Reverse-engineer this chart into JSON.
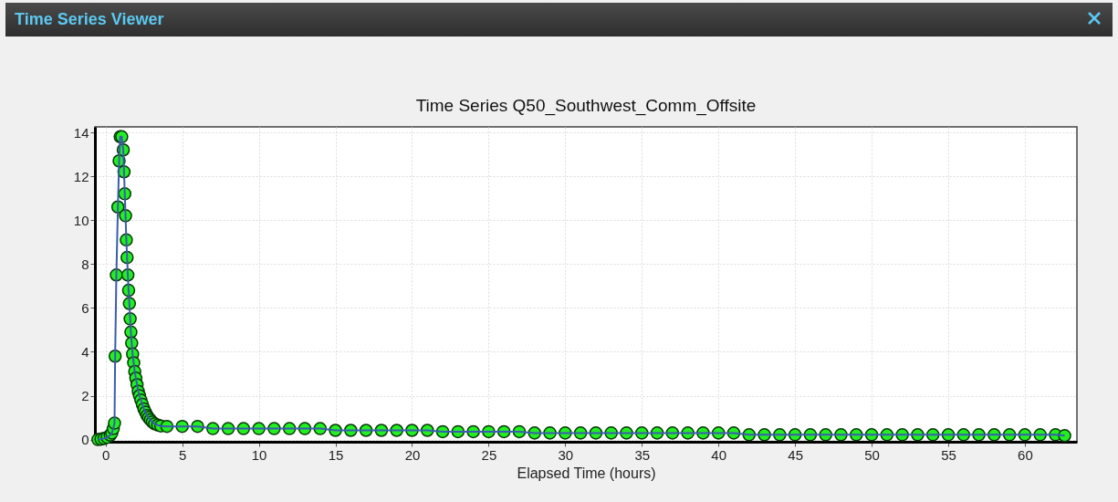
{
  "chart_data": {
    "type": "line",
    "title": "Time Series Q50_Southwest_Comm_Offsite",
    "xlabel": "Elapsed Time (hours)",
    "annotations": [
      "Time Series Viewer"
    ],
    "xlim": [
      -0.7,
      63.4
    ],
    "ylim": [
      -0.1,
      14.25
    ],
    "xticks": [
      0,
      5,
      10,
      15,
      20,
      25,
      30,
      35,
      40,
      45,
      50,
      55,
      60
    ],
    "yticks": [
      0,
      2,
      4,
      6,
      8,
      10,
      12,
      14
    ],
    "grid": true,
    "marker": "circle",
    "x": [
      -0.5,
      -0.3,
      -0.1,
      0.1,
      0.3,
      0.4,
      0.5,
      0.58,
      0.62,
      0.7,
      0.8,
      0.88,
      0.95,
      1.05,
      1.15,
      1.2,
      1.25,
      1.3,
      1.35,
      1.4,
      1.45,
      1.5,
      1.55,
      1.6,
      1.65,
      1.7,
      1.76,
      1.83,
      1.9,
      1.97,
      2.05,
      2.13,
      2.21,
      2.3,
      2.4,
      2.5,
      2.6,
      2.7,
      2.8,
      2.92,
      3.05,
      3.2,
      3.4,
      3.6,
      4,
      5,
      6,
      7,
      8,
      9,
      10,
      11,
      12,
      13,
      14,
      15,
      16,
      17,
      18,
      19,
      20,
      21,
      22,
      23,
      24,
      25,
      26,
      27,
      28,
      29,
      30,
      31,
      32,
      33,
      34,
      35,
      36,
      37,
      38,
      39,
      40,
      41,
      42,
      43,
      44,
      45,
      46,
      47,
      48,
      49,
      50,
      51,
      52,
      53,
      54,
      55,
      56,
      57,
      58,
      59,
      60,
      61,
      62,
      62.6
    ],
    "series": [
      {
        "color": "#22ee22",
        "values": [
          0,
          0.02,
          0.05,
          0.1,
          0.2,
          0.3,
          0.5,
          0.75,
          3.8,
          7.5,
          10.6,
          12.7,
          13.8,
          13.8,
          13.2,
          12.2,
          11.2,
          10.2,
          9.1,
          8.3,
          7.5,
          6.8,
          6.2,
          5.5,
          4.9,
          4.4,
          3.9,
          3.5,
          3.1,
          2.8,
          2.5,
          2.2,
          2,
          1.8,
          1.6,
          1.4,
          1.25,
          1.1,
          1,
          0.9,
          0.8,
          0.72,
          0.66,
          0.62,
          0.6,
          0.6,
          0.6,
          0.5,
          0.5,
          0.5,
          0.5,
          0.5,
          0.5,
          0.5,
          0.5,
          0.42,
          0.42,
          0.42,
          0.42,
          0.42,
          0.42,
          0.42,
          0.36,
          0.36,
          0.36,
          0.36,
          0.36,
          0.36,
          0.3,
          0.3,
          0.3,
          0.3,
          0.3,
          0.3,
          0.3,
          0.3,
          0.3,
          0.3,
          0.3,
          0.3,
          0.3,
          0.3,
          0.22,
          0.22,
          0.22,
          0.22,
          0.22,
          0.22,
          0.22,
          0.22,
          0.22,
          0.22,
          0.22,
          0.22,
          0.22,
          0.22,
          0.22,
          0.22,
          0.22,
          0.22,
          0.22,
          0.22,
          0.22,
          0.18
        ]
      }
    ]
  }
}
